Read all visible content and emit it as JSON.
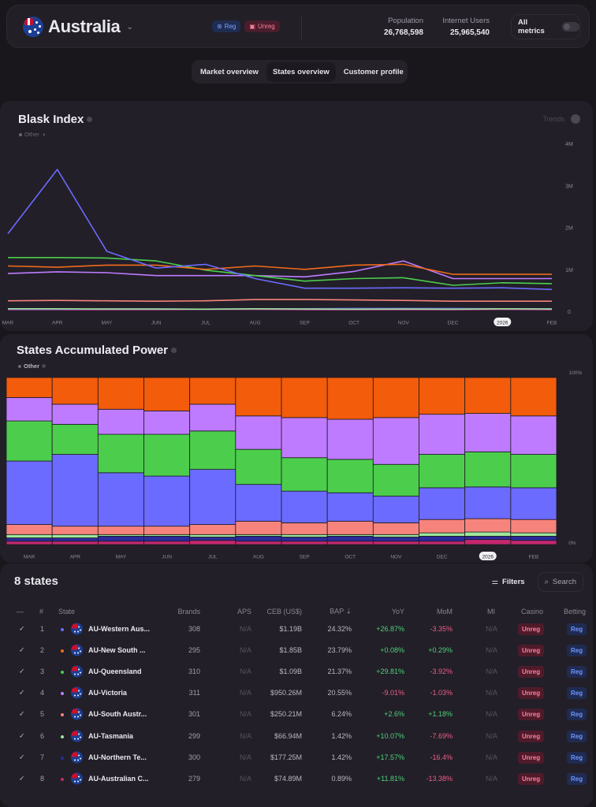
{
  "header": {
    "country": "Australia",
    "badges": {
      "reg": "Reg",
      "unreg": "Unreg"
    },
    "stats": [
      {
        "label": "Population",
        "value": "26,768,598"
      },
      {
        "label": "Internet Users",
        "value": "25,965,540"
      }
    ],
    "all_metrics_label": "All metrics"
  },
  "tabs": [
    {
      "label": "Market overview",
      "active": false
    },
    {
      "label": "States overview",
      "active": true
    },
    {
      "label": "Customer profile",
      "active": false
    }
  ],
  "blask_index": {
    "title": "Blask Index",
    "legend_other": "Other",
    "trends_label": "Trends"
  },
  "states_power": {
    "title": "States Accumulated Power",
    "legend_other": "Other"
  },
  "state_colors": {
    "western_australia": "#6b6bff",
    "new_south_wales": "#f25c0a",
    "queensland": "#4cce4c",
    "victoria": "#bf7bff",
    "south_australia": "#f6847c",
    "tasmania": "#9de59a",
    "northern_territory": "#2a2a9a",
    "australian_capital_territory": "#c4286e"
  },
  "chart_data": [
    {
      "type": "line",
      "title": "Blask Index",
      "x": [
        "MAR",
        "APR",
        "MAY",
        "JUN",
        "JUL",
        "AUG",
        "SEP",
        "OCT",
        "NOV",
        "DEC",
        "2026",
        "FEB"
      ],
      "highlighted_tick": "2026",
      "y_ticks": [
        "0",
        "1M",
        "2M",
        "3M",
        "4M"
      ],
      "ylim": [
        0,
        4000000
      ],
      "y_axis_position": "right",
      "grid": false,
      "series": [
        {
          "name": "AU-Western Australia",
          "color": "#6b6bff",
          "values": [
            1850000,
            3380000,
            1430000,
            1030000,
            1120000,
            780000,
            550000,
            550000,
            560000,
            550000,
            560000,
            520000
          ]
        },
        {
          "name": "AU-New South Wales",
          "color": "#f26a1b",
          "values": [
            1080000,
            1050000,
            1100000,
            1100000,
            1000000,
            1080000,
            1000000,
            1100000,
            1120000,
            880000,
            880000,
            880000
          ]
        },
        {
          "name": "AU-Queensland",
          "color": "#4cce4c",
          "values": [
            1280000,
            1280000,
            1270000,
            1200000,
            980000,
            850000,
            720000,
            780000,
            800000,
            620000,
            680000,
            660000
          ]
        },
        {
          "name": "AU-Victoria",
          "color": "#bf7bff",
          "values": [
            900000,
            940000,
            920000,
            850000,
            850000,
            850000,
            820000,
            950000,
            1200000,
            780000,
            780000,
            780000
          ]
        },
        {
          "name": "AU-South Australia",
          "color": "#f6847c",
          "values": [
            250000,
            260000,
            250000,
            240000,
            250000,
            280000,
            280000,
            270000,
            260000,
            240000,
            240000,
            240000
          ]
        },
        {
          "name": "AU-Tasmania",
          "color": "#9de59a",
          "values": [
            60000,
            60000,
            55000,
            55000,
            50000,
            60000,
            55000,
            50000,
            55000,
            50000,
            60000,
            55000
          ]
        },
        {
          "name": "AU-Northern Territory",
          "color": "#5050d0",
          "values": [
            50000,
            50000,
            55000,
            55000,
            50000,
            60000,
            60000,
            70000,
            70000,
            70000,
            60000,
            60000
          ]
        },
        {
          "name": "AU-Australian Capital Territory",
          "color": "#d03aa0",
          "values": [
            40000,
            40000,
            40000,
            40000,
            45000,
            45000,
            40000,
            40000,
            40000,
            40000,
            45000,
            40000
          ]
        }
      ]
    },
    {
      "type": "bar",
      "stacked": "percent",
      "title": "States Accumulated Power",
      "categories": [
        "MAR",
        "APR",
        "MAY",
        "JUN",
        "JUL",
        "AUG",
        "SEP",
        "OCT",
        "NOV",
        "DEC",
        "2026",
        "FEB"
      ],
      "highlighted_tick": "2026",
      "y_ticks": [
        "0%",
        "100%"
      ],
      "ylim": [
        0,
        100
      ],
      "y_axis_position": "right",
      "series": [
        {
          "name": "AU-Australian Capital Territory",
          "color": "#c4286e",
          "values": [
            2,
            2,
            2,
            2,
            2.5,
            2,
            2,
            2,
            2,
            2,
            3,
            2.5
          ]
        },
        {
          "name": "AU-Northern Territory",
          "color": "#2a2a9a",
          "values": [
            2,
            2,
            3,
            3,
            2,
            3,
            2.5,
            3,
            2.5,
            3,
            2,
            2.5
          ]
        },
        {
          "name": "AU-Tasmania",
          "color": "#9de59a",
          "values": [
            2,
            2,
            1,
            1,
            1.5,
            1,
            1.5,
            1,
            1.5,
            2,
            2.5,
            2
          ]
        },
        {
          "name": "AU-South Australia",
          "color": "#f6847c",
          "values": [
            6,
            5,
            5,
            5,
            6,
            8,
            7,
            8,
            7,
            8,
            8,
            8
          ]
        },
        {
          "name": "AU-Western Australia",
          "color": "#6b6bff",
          "values": [
            38,
            43,
            32,
            30,
            33,
            22,
            19,
            17,
            16,
            19,
            19,
            19
          ]
        },
        {
          "name": "AU-Queensland",
          "color": "#4cce4c",
          "values": [
            24,
            18,
            23,
            25,
            23,
            21,
            20,
            20,
            19,
            20,
            21,
            20
          ]
        },
        {
          "name": "AU-Victoria",
          "color": "#bf7bff",
          "values": [
            14,
            12,
            15,
            14,
            16,
            20,
            24,
            24,
            28,
            24,
            23,
            23
          ]
        },
        {
          "name": "AU-New South Wales",
          "color": "#f25c0a",
          "values": [
            12,
            16,
            19,
            20,
            16,
            23,
            24,
            25,
            24,
            22,
            21.5,
            23
          ]
        }
      ]
    }
  ],
  "table": {
    "title": "8 states",
    "filters_label": "Filters",
    "search_label": "Search",
    "columns": [
      "—",
      "#",
      "State",
      "Brands",
      "APS",
      "CEB (US$)",
      "BAP",
      "YoY",
      "MoM",
      "MI",
      "Casino",
      "Betting"
    ],
    "sort_indicator": "⇣",
    "rows": [
      {
        "rank": "1",
        "dot": "#6b6bff",
        "state": "AU-Western Aus...",
        "brands": "308",
        "aps": "N/A",
        "ceb": "$1.19B",
        "bap": "24.32%",
        "yoy": "+26.87%",
        "mom": "-3.35%",
        "mi": "N/A",
        "casino": "Unreg",
        "betting": "Reg"
      },
      {
        "rank": "2",
        "dot": "#f26a1b",
        "state": "AU-New South ...",
        "brands": "295",
        "aps": "N/A",
        "ceb": "$1.85B",
        "bap": "23.79%",
        "yoy": "+0.08%",
        "mom": "+0.29%",
        "mi": "N/A",
        "casino": "Unreg",
        "betting": "Reg"
      },
      {
        "rank": "3",
        "dot": "#4cce4c",
        "state": "AU-Queensland",
        "brands": "310",
        "aps": "N/A",
        "ceb": "$1.09B",
        "bap": "21.37%",
        "yoy": "+29.81%",
        "mom": "-3.92%",
        "mi": "N/A",
        "casino": "Unreg",
        "betting": "Reg"
      },
      {
        "rank": "4",
        "dot": "#bf7bff",
        "state": "AU-Victoria",
        "brands": "311",
        "aps": "N/A",
        "ceb": "$950.26M",
        "bap": "20.55%",
        "yoy": "-9.01%",
        "mom": "-1.03%",
        "mi": "N/A",
        "casino": "Unreg",
        "betting": "Reg"
      },
      {
        "rank": "5",
        "dot": "#f6847c",
        "state": "AU-South Austr...",
        "brands": "301",
        "aps": "N/A",
        "ceb": "$250.21M",
        "bap": "6.24%",
        "yoy": "+2.6%",
        "mom": "+1.18%",
        "mi": "N/A",
        "casino": "Unreg",
        "betting": "Reg"
      },
      {
        "rank": "6",
        "dot": "#9de59a",
        "state": "AU-Tasmania",
        "brands": "299",
        "aps": "N/A",
        "ceb": "$66.94M",
        "bap": "1.42%",
        "yoy": "+10.07%",
        "mom": "-7.69%",
        "mi": "N/A",
        "casino": "Unreg",
        "betting": "Reg"
      },
      {
        "rank": "7",
        "dot": "#2a2a9a",
        "state": "AU-Northern Te...",
        "brands": "300",
        "aps": "N/A",
        "ceb": "$177.25M",
        "bap": "1.42%",
        "yoy": "+17.57%",
        "mom": "-16.4%",
        "mi": "N/A",
        "casino": "Unreg",
        "betting": "Reg"
      },
      {
        "rank": "8",
        "dot": "#c4286e",
        "state": "AU-Australian C...",
        "brands": "279",
        "aps": "N/A",
        "ceb": "$74.89M",
        "bap": "0.89%",
        "yoy": "+11.81%",
        "mom": "-13.38%",
        "mi": "N/A",
        "casino": "Unreg",
        "betting": "Reg"
      }
    ]
  }
}
